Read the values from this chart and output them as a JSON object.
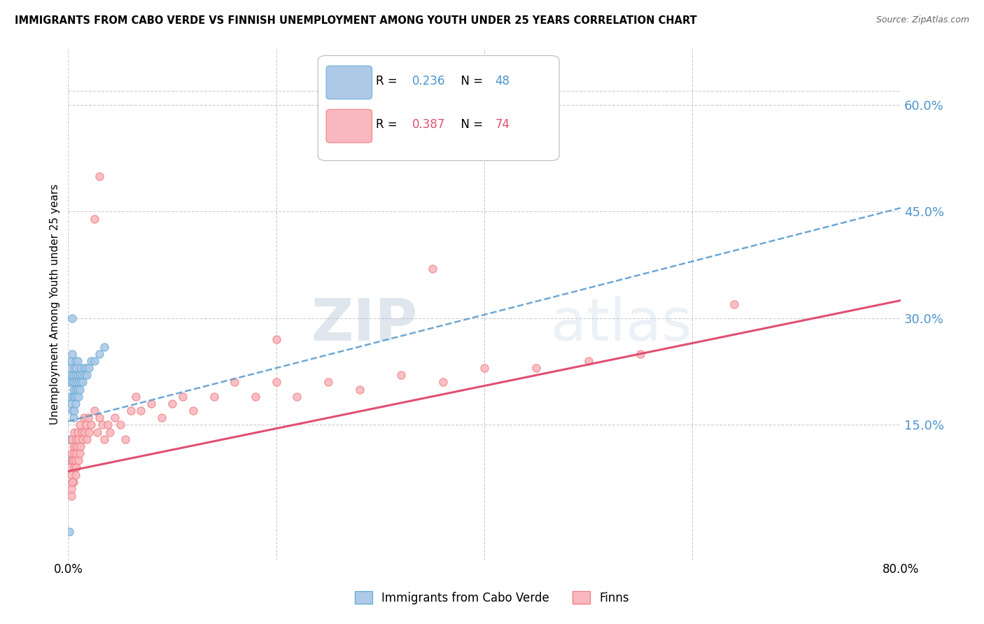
{
  "title": "IMMIGRANTS FROM CABO VERDE VS FINNISH UNEMPLOYMENT AMONG YOUTH UNDER 25 YEARS CORRELATION CHART",
  "source": "Source: ZipAtlas.com",
  "ylabel": "Unemployment Among Youth under 25 years",
  "ytick_labels": [
    "60.0%",
    "45.0%",
    "30.0%",
    "15.0%"
  ],
  "ytick_values": [
    0.6,
    0.45,
    0.3,
    0.15
  ],
  "xlim": [
    0.0,
    0.8
  ],
  "ylim": [
    -0.04,
    0.68
  ],
  "legend_label1": "Immigrants from Cabo Verde",
  "legend_label2": "Finns",
  "blue_color": "#6baed6",
  "blue_fill": "#aec9e8",
  "pink_color": "#f08080",
  "pink_fill": "#f9b8c0",
  "blue_line_color": "#5599cc",
  "pink_line_color": "#e05070",
  "watermark_zip": "ZIP",
  "watermark_atlas": "atlas",
  "R1": 0.236,
  "N1": 48,
  "R2": 0.387,
  "N2": 74,
  "blue_line_x0": 0.0,
  "blue_line_y0": 0.155,
  "blue_line_x1": 0.8,
  "blue_line_y1": 0.455,
  "pink_line_x0": 0.0,
  "pink_line_y0": 0.085,
  "pink_line_x1": 0.8,
  "pink_line_y1": 0.325,
  "blue_x": [
    0.001,
    0.002,
    0.002,
    0.003,
    0.003,
    0.003,
    0.004,
    0.004,
    0.004,
    0.005,
    0.005,
    0.005,
    0.005,
    0.006,
    0.006,
    0.006,
    0.006,
    0.007,
    0.007,
    0.007,
    0.007,
    0.008,
    0.008,
    0.008,
    0.009,
    0.009,
    0.009,
    0.01,
    0.01,
    0.011,
    0.011,
    0.012,
    0.012,
    0.013,
    0.014,
    0.015,
    0.016,
    0.017,
    0.018,
    0.02,
    0.022,
    0.025,
    0.03,
    0.035,
    0.001,
    0.002,
    0.004,
    0.001
  ],
  "blue_y": [
    0.21,
    0.23,
    0.19,
    0.24,
    0.22,
    0.18,
    0.25,
    0.21,
    0.17,
    0.22,
    0.2,
    0.19,
    0.16,
    0.23,
    0.21,
    0.19,
    0.17,
    0.24,
    0.22,
    0.2,
    0.18,
    0.23,
    0.21,
    0.19,
    0.24,
    0.22,
    0.2,
    0.21,
    0.19,
    0.22,
    0.2,
    0.23,
    0.21,
    0.22,
    0.21,
    0.23,
    0.22,
    0.23,
    0.22,
    0.23,
    0.24,
    0.24,
    0.25,
    0.26,
    0.13,
    0.1,
    0.3,
    0.0
  ],
  "pink_x": [
    0.002,
    0.003,
    0.003,
    0.004,
    0.004,
    0.004,
    0.005,
    0.005,
    0.005,
    0.006,
    0.006,
    0.006,
    0.007,
    0.007,
    0.007,
    0.008,
    0.008,
    0.008,
    0.009,
    0.009,
    0.01,
    0.01,
    0.011,
    0.011,
    0.012,
    0.013,
    0.014,
    0.015,
    0.016,
    0.017,
    0.018,
    0.019,
    0.02,
    0.022,
    0.025,
    0.028,
    0.03,
    0.033,
    0.035,
    0.038,
    0.04,
    0.045,
    0.05,
    0.055,
    0.06,
    0.065,
    0.07,
    0.08,
    0.09,
    0.1,
    0.11,
    0.12,
    0.14,
    0.16,
    0.18,
    0.2,
    0.22,
    0.25,
    0.28,
    0.32,
    0.36,
    0.4,
    0.45,
    0.5,
    0.55,
    0.64,
    0.003,
    0.003,
    0.004,
    0.025,
    0.03,
    0.2,
    0.25,
    0.35
  ],
  "pink_y": [
    0.09,
    0.11,
    0.08,
    0.1,
    0.13,
    0.07,
    0.12,
    0.1,
    0.07,
    0.11,
    0.09,
    0.14,
    0.12,
    0.1,
    0.08,
    0.13,
    0.11,
    0.09,
    0.14,
    0.12,
    0.1,
    0.13,
    0.11,
    0.15,
    0.12,
    0.14,
    0.13,
    0.16,
    0.14,
    0.15,
    0.13,
    0.16,
    0.14,
    0.15,
    0.17,
    0.14,
    0.16,
    0.15,
    0.13,
    0.15,
    0.14,
    0.16,
    0.15,
    0.13,
    0.17,
    0.19,
    0.17,
    0.18,
    0.16,
    0.18,
    0.19,
    0.17,
    0.19,
    0.21,
    0.19,
    0.21,
    0.19,
    0.21,
    0.2,
    0.22,
    0.21,
    0.23,
    0.23,
    0.24,
    0.25,
    0.32,
    0.06,
    0.05,
    0.07,
    0.44,
    0.5,
    0.27,
    0.55,
    0.37
  ],
  "grid_color": "#cccccc",
  "background_color": "#ffffff"
}
